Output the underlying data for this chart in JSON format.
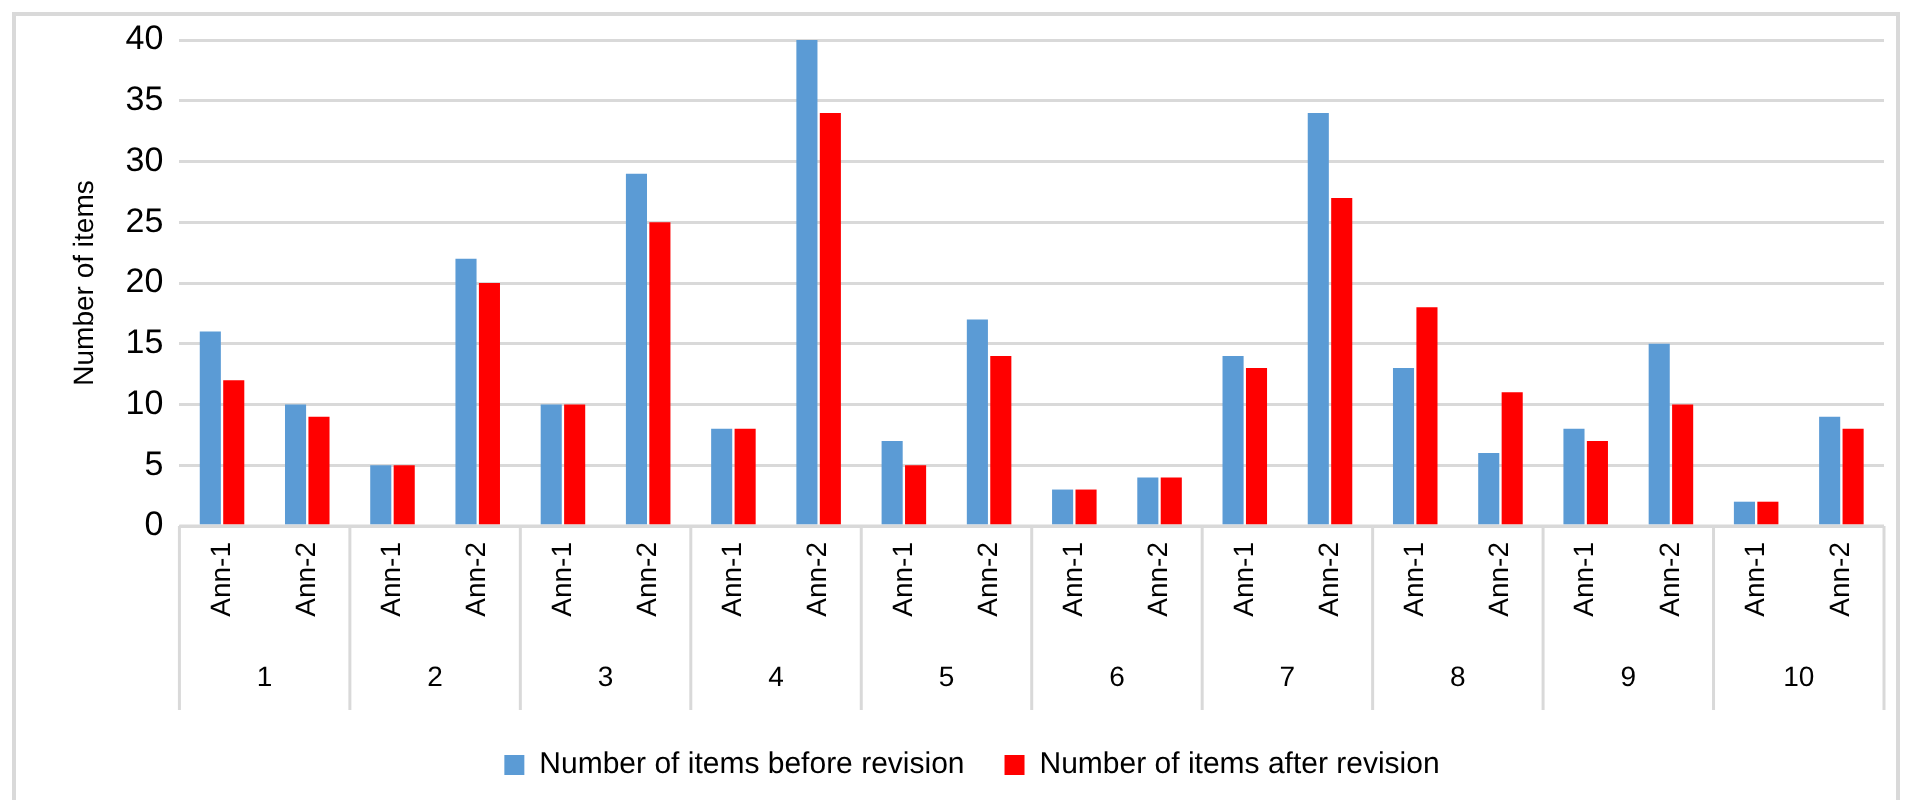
{
  "chart_data": {
    "type": "bar",
    "ylabel": "Number of items",
    "categories": [
      "Ann-1",
      "Ann-2",
      "Ann-1",
      "Ann-2",
      "Ann-1",
      "Ann-2",
      "Ann-1",
      "Ann-2",
      "Ann-1",
      "Ann-2",
      "Ann-1",
      "Ann-2",
      "Ann-1",
      "Ann-2",
      "Ann-1",
      "Ann-2",
      "Ann-1",
      "Ann-2",
      "Ann-1",
      "Ann-2"
    ],
    "annotations": [
      "1",
      "2",
      "3",
      "4",
      "5",
      "6",
      "7",
      "8",
      "9",
      "10"
    ],
    "series": [
      {
        "name": "Number of items before revision",
        "color": "#5b9bd5",
        "values": [
          16,
          10,
          5,
          22,
          10,
          29,
          8,
          40,
          7,
          17,
          3,
          4,
          14,
          34,
          13,
          6,
          8,
          15,
          2,
          9
        ]
      },
      {
        "name": "Number of items after revision",
        "color": "#ff0000",
        "values": [
          12,
          9,
          5,
          20,
          10,
          25,
          8,
          34,
          5,
          14,
          3,
          4,
          13,
          27,
          18,
          11,
          7,
          10,
          2,
          8
        ]
      }
    ],
    "ylim": [
      0,
      40
    ],
    "yticks": [
      0,
      5,
      10,
      15,
      20,
      25,
      30,
      35,
      40
    ],
    "grid": "y",
    "legend": "bottom"
  }
}
